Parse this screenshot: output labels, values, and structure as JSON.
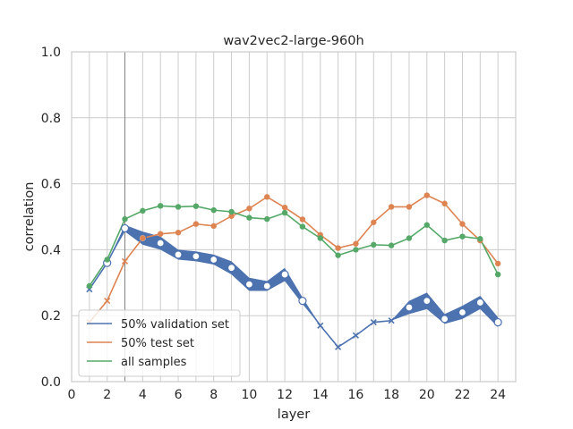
{
  "chart_data": {
    "type": "line",
    "title": "wav2vec2-large-960h",
    "xlabel": "layer",
    "ylabel": "correlation",
    "xlim": [
      0,
      25
    ],
    "ylim": [
      0.0,
      1.0
    ],
    "xticks": [
      0,
      2,
      4,
      6,
      8,
      10,
      12,
      14,
      16,
      18,
      20,
      22,
      24
    ],
    "yticks": [
      0.0,
      0.2,
      0.4,
      0.6,
      0.8,
      1.0
    ],
    "xtick_labels": [
      "0",
      "2",
      "4",
      "6",
      "8",
      "10",
      "12",
      "14",
      "16",
      "18",
      "20",
      "22",
      "24"
    ],
    "ytick_labels": [
      "0.0",
      "0.2",
      "0.4",
      "0.6",
      "0.8",
      "1.0"
    ],
    "grid": true,
    "legend_position": "lower-left",
    "vertical_line_x": 3,
    "x": [
      1,
      2,
      3,
      4,
      5,
      6,
      7,
      8,
      9,
      10,
      11,
      12,
      13,
      14,
      15,
      16,
      17,
      18,
      19,
      20,
      21,
      22,
      23,
      24
    ],
    "series": [
      {
        "name": "50% validation set",
        "color": "#4c72b0",
        "values": [
          0.28,
          0.36,
          0.465,
          0.435,
          0.42,
          0.385,
          0.38,
          0.37,
          0.345,
          0.295,
          0.29,
          0.325,
          0.245,
          0.17,
          0.105,
          0.14,
          0.18,
          0.185,
          0.225,
          0.245,
          0.19,
          0.21,
          0.24,
          0.18
        ],
        "band": [
          0.0,
          0.0,
          0.01,
          0.02,
          0.02,
          0.015,
          0.015,
          0.015,
          0.02,
          0.02,
          0.015,
          0.02,
          0.01,
          0.0,
          0.0,
          0.0,
          0.0,
          0.0,
          0.02,
          0.025,
          0.015,
          0.02,
          0.02,
          0.015
        ],
        "markers": [
          "x",
          "o",
          "o",
          "o",
          "o",
          "o",
          "o",
          "o",
          "o",
          "o",
          "o",
          "o",
          "o",
          "x",
          "x",
          "x",
          "x",
          "x",
          "o",
          "o",
          "o",
          "o",
          "o",
          "o"
        ]
      },
      {
        "name": "50% test set",
        "color": "#dd8452",
        "values": [
          0.18,
          0.245,
          0.365,
          0.435,
          0.448,
          0.452,
          0.478,
          0.472,
          0.502,
          0.525,
          0.56,
          0.528,
          0.492,
          0.445,
          0.405,
          0.418,
          0.483,
          0.53,
          0.53,
          0.565,
          0.54,
          0.478,
          0.428,
          0.358
        ],
        "markers": [
          "x",
          "x",
          "x",
          "o",
          "o",
          "o",
          "o",
          "o",
          "o",
          "o",
          "o",
          "o",
          "o",
          "o",
          "o",
          "o",
          "o",
          "o",
          "o",
          "o",
          "o",
          "o",
          "o",
          "o"
        ]
      },
      {
        "name": "all samples",
        "color": "#55a868",
        "values": [
          0.29,
          0.37,
          0.493,
          0.518,
          0.533,
          0.53,
          0.532,
          0.52,
          0.515,
          0.497,
          0.493,
          0.512,
          0.47,
          0.435,
          0.383,
          0.4,
          0.415,
          0.413,
          0.435,
          0.475,
          0.428,
          0.44,
          0.433,
          0.325
        ],
        "markers": [
          "o",
          "o",
          "o",
          "o",
          "o",
          "o",
          "o",
          "o",
          "o",
          "o",
          "o",
          "o",
          "o",
          "o",
          "o",
          "o",
          "o",
          "o",
          "o",
          "o",
          "o",
          "o",
          "o",
          "o"
        ]
      }
    ]
  }
}
